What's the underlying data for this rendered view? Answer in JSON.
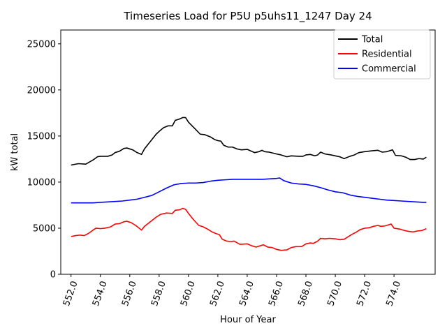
{
  "chart_data": {
    "type": "line",
    "title": "Timeseries Load for P5U p5uhs11_1247  Day 24",
    "xlabel": "Hour of Year",
    "ylabel": "kW total",
    "xlim": [
      551.3,
      576.8
    ],
    "ylim": [
      0,
      26500
    ],
    "x_ticks": [
      552,
      554,
      556,
      558,
      560,
      562,
      564,
      566,
      568,
      570,
      572,
      574
    ],
    "x_tick_labels": [
      "552.0",
      "554.0",
      "556.0",
      "558.0",
      "560.0",
      "562.0",
      "564.0",
      "566.0",
      "568.0",
      "570.0",
      "572.0",
      "574.0"
    ],
    "y_ticks": [
      0,
      5000,
      10000,
      15000,
      20000,
      25000
    ],
    "y_tick_labels": [
      "0",
      "5000",
      "10000",
      "15000",
      "20000",
      "25000"
    ],
    "legend_position": "top-right",
    "series": [
      {
        "name": "Total",
        "color": "#000000",
        "points": [
          [
            552.0,
            11850
          ],
          [
            552.5,
            12000
          ],
          [
            553.0,
            11950
          ],
          [
            553.5,
            12400
          ],
          [
            553.8,
            12750
          ],
          [
            554.0,
            12800
          ],
          [
            554.5,
            12800
          ],
          [
            554.8,
            12950
          ],
          [
            555.0,
            13200
          ],
          [
            555.3,
            13350
          ],
          [
            555.6,
            13650
          ],
          [
            555.8,
            13700
          ],
          [
            556.2,
            13500
          ],
          [
            556.5,
            13200
          ],
          [
            556.8,
            13000
          ],
          [
            557.0,
            13600
          ],
          [
            557.5,
            14600
          ],
          [
            557.8,
            15200
          ],
          [
            558.0,
            15500
          ],
          [
            558.3,
            15900
          ],
          [
            558.6,
            16100
          ],
          [
            558.9,
            16100
          ],
          [
            559.1,
            16700
          ],
          [
            559.4,
            16850
          ],
          [
            559.6,
            17000
          ],
          [
            559.8,
            17000
          ],
          [
            560.0,
            16500
          ],
          [
            560.5,
            15700
          ],
          [
            560.8,
            15200
          ],
          [
            561.1,
            15150
          ],
          [
            561.5,
            14900
          ],
          [
            561.8,
            14600
          ],
          [
            562.0,
            14500
          ],
          [
            562.2,
            14450
          ],
          [
            562.4,
            14000
          ],
          [
            562.7,
            13800
          ],
          [
            563.0,
            13800
          ],
          [
            563.3,
            13600
          ],
          [
            563.6,
            13500
          ],
          [
            564.0,
            13550
          ],
          [
            564.5,
            13200
          ],
          [
            564.8,
            13300
          ],
          [
            565.0,
            13450
          ],
          [
            565.2,
            13300
          ],
          [
            565.5,
            13250
          ],
          [
            566.0,
            13050
          ],
          [
            566.3,
            12950
          ],
          [
            566.7,
            12750
          ],
          [
            567.0,
            12850
          ],
          [
            567.5,
            12800
          ],
          [
            567.8,
            12800
          ],
          [
            568.0,
            12950
          ],
          [
            568.3,
            13000
          ],
          [
            568.6,
            12850
          ],
          [
            568.8,
            12950
          ],
          [
            569.0,
            13250
          ],
          [
            569.3,
            13050
          ],
          [
            569.7,
            12950
          ],
          [
            570.0,
            12850
          ],
          [
            570.3,
            12750
          ],
          [
            570.6,
            12550
          ],
          [
            571.0,
            12800
          ],
          [
            571.3,
            12950
          ],
          [
            571.6,
            13200
          ],
          [
            572.0,
            13300
          ],
          [
            572.5,
            13400
          ],
          [
            572.9,
            13450
          ],
          [
            573.2,
            13250
          ],
          [
            573.5,
            13300
          ],
          [
            573.9,
            13500
          ],
          [
            574.1,
            12900
          ],
          [
            574.5,
            12850
          ],
          [
            574.8,
            12700
          ],
          [
            575.1,
            12450
          ],
          [
            575.4,
            12450
          ],
          [
            575.7,
            12550
          ],
          [
            576.0,
            12500
          ],
          [
            576.2,
            12700
          ]
        ]
      },
      {
        "name": "Residential",
        "color": "#ff0000",
        "points": [
          [
            552.0,
            4100
          ],
          [
            552.3,
            4200
          ],
          [
            552.6,
            4250
          ],
          [
            552.9,
            4200
          ],
          [
            553.2,
            4450
          ],
          [
            553.5,
            4800
          ],
          [
            553.7,
            5000
          ],
          [
            554.0,
            4950
          ],
          [
            554.3,
            5000
          ],
          [
            554.7,
            5150
          ],
          [
            555.0,
            5450
          ],
          [
            555.3,
            5500
          ],
          [
            555.6,
            5700
          ],
          [
            555.8,
            5750
          ],
          [
            556.1,
            5600
          ],
          [
            556.4,
            5300
          ],
          [
            556.8,
            4800
          ],
          [
            557.0,
            5200
          ],
          [
            557.4,
            5700
          ],
          [
            557.8,
            6200
          ],
          [
            558.1,
            6500
          ],
          [
            558.5,
            6650
          ],
          [
            558.9,
            6600
          ],
          [
            559.1,
            6950
          ],
          [
            559.4,
            7000
          ],
          [
            559.6,
            7150
          ],
          [
            559.8,
            7050
          ],
          [
            560.0,
            6600
          ],
          [
            560.3,
            6000
          ],
          [
            560.7,
            5300
          ],
          [
            561.0,
            5150
          ],
          [
            561.3,
            4900
          ],
          [
            561.6,
            4600
          ],
          [
            561.9,
            4400
          ],
          [
            562.1,
            4300
          ],
          [
            562.3,
            3800
          ],
          [
            562.6,
            3600
          ],
          [
            562.9,
            3550
          ],
          [
            563.1,
            3600
          ],
          [
            563.5,
            3250
          ],
          [
            564.0,
            3300
          ],
          [
            564.3,
            3100
          ],
          [
            564.6,
            2950
          ],
          [
            564.9,
            3100
          ],
          [
            565.1,
            3200
          ],
          [
            565.4,
            2950
          ],
          [
            565.7,
            2900
          ],
          [
            566.0,
            2700
          ],
          [
            566.3,
            2600
          ],
          [
            566.7,
            2650
          ],
          [
            567.0,
            2900
          ],
          [
            567.3,
            3000
          ],
          [
            567.7,
            3000
          ],
          [
            568.0,
            3300
          ],
          [
            568.3,
            3400
          ],
          [
            568.5,
            3350
          ],
          [
            568.8,
            3600
          ],
          [
            569.0,
            3900
          ],
          [
            569.3,
            3850
          ],
          [
            569.6,
            3900
          ],
          [
            570.0,
            3850
          ],
          [
            570.3,
            3750
          ],
          [
            570.6,
            3800
          ],
          [
            570.8,
            4000
          ],
          [
            571.1,
            4300
          ],
          [
            571.4,
            4550
          ],
          [
            571.7,
            4850
          ],
          [
            572.0,
            5000
          ],
          [
            572.3,
            5050
          ],
          [
            572.6,
            5200
          ],
          [
            572.9,
            5300
          ],
          [
            573.1,
            5200
          ],
          [
            573.4,
            5250
          ],
          [
            573.8,
            5450
          ],
          [
            574.0,
            5000
          ],
          [
            574.4,
            4900
          ],
          [
            574.7,
            4750
          ],
          [
            575.0,
            4650
          ],
          [
            575.3,
            4600
          ],
          [
            575.6,
            4700
          ],
          [
            575.9,
            4750
          ],
          [
            576.2,
            4950
          ]
        ]
      },
      {
        "name": "Commercial",
        "color": "#0000ff",
        "points": [
          [
            552.0,
            7750
          ],
          [
            552.5,
            7750
          ],
          [
            553.0,
            7750
          ],
          [
            553.5,
            7750
          ],
          [
            554.0,
            7800
          ],
          [
            554.5,
            7850
          ],
          [
            555.0,
            7900
          ],
          [
            555.5,
            7950
          ],
          [
            556.0,
            8050
          ],
          [
            556.5,
            8150
          ],
          [
            557.0,
            8350
          ],
          [
            557.5,
            8550
          ],
          [
            558.0,
            8950
          ],
          [
            558.5,
            9350
          ],
          [
            559.0,
            9700
          ],
          [
            559.5,
            9850
          ],
          [
            560.0,
            9900
          ],
          [
            560.5,
            9900
          ],
          [
            561.0,
            9950
          ],
          [
            561.5,
            10100
          ],
          [
            562.0,
            10200
          ],
          [
            562.5,
            10250
          ],
          [
            563.0,
            10300
          ],
          [
            563.5,
            10300
          ],
          [
            564.0,
            10300
          ],
          [
            564.5,
            10300
          ],
          [
            565.0,
            10300
          ],
          [
            565.5,
            10350
          ],
          [
            566.0,
            10400
          ],
          [
            566.2,
            10450
          ],
          [
            566.5,
            10150
          ],
          [
            567.0,
            9900
          ],
          [
            567.5,
            9800
          ],
          [
            568.0,
            9750
          ],
          [
            568.5,
            9600
          ],
          [
            569.0,
            9400
          ],
          [
            569.5,
            9150
          ],
          [
            570.0,
            8950
          ],
          [
            570.5,
            8850
          ],
          [
            571.0,
            8600
          ],
          [
            571.5,
            8450
          ],
          [
            572.0,
            8350
          ],
          [
            572.5,
            8250
          ],
          [
            573.0,
            8150
          ],
          [
            573.5,
            8050
          ],
          [
            574.0,
            8000
          ],
          [
            574.5,
            7950
          ],
          [
            575.0,
            7900
          ],
          [
            575.5,
            7850
          ],
          [
            576.0,
            7800
          ],
          [
            576.2,
            7800
          ]
        ]
      }
    ]
  }
}
